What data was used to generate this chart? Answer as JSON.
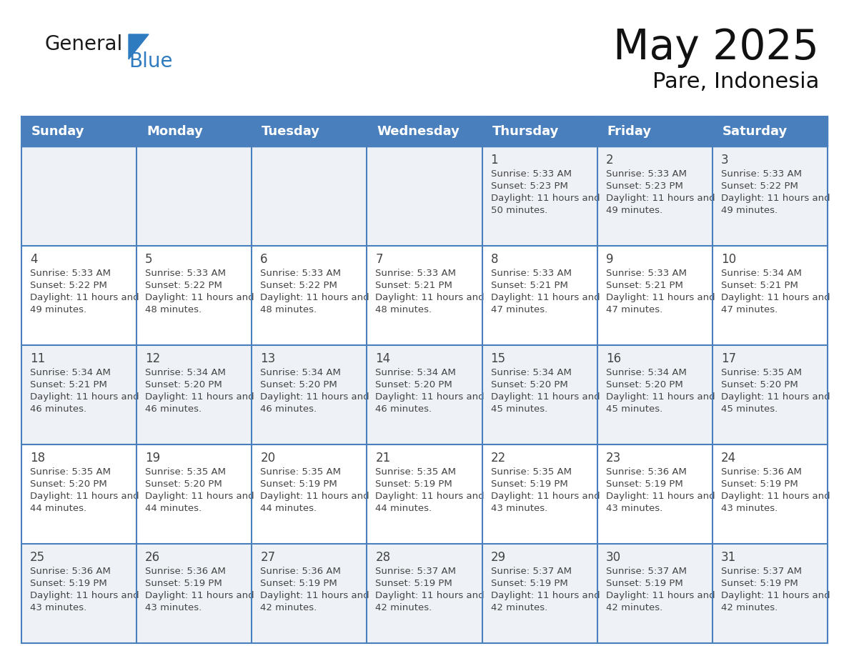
{
  "title": "May 2025",
  "subtitle": "Pare, Indonesia",
  "days_of_week": [
    "Sunday",
    "Monday",
    "Tuesday",
    "Wednesday",
    "Thursday",
    "Friday",
    "Saturday"
  ],
  "header_bg": "#4a7fbd",
  "header_text": "#ffffff",
  "cell_bg_light": "#eef2f7",
  "cell_bg_white": "#ffffff",
  "grid_color": "#4a7fbd",
  "text_color": "#444444",
  "general_text": "#111111",
  "logo_general_color": "#1a1a1a",
  "logo_blue_color": "#2e7bbf",
  "logo_triangle_color": "#2e7bbf",
  "calendar": [
    [
      null,
      null,
      null,
      null,
      {
        "day": 1,
        "sunrise": "5:33 AM",
        "sunset": "5:23 PM",
        "daylight": "11 hours and 50 minutes."
      },
      {
        "day": 2,
        "sunrise": "5:33 AM",
        "sunset": "5:23 PM",
        "daylight": "11 hours and 49 minutes."
      },
      {
        "day": 3,
        "sunrise": "5:33 AM",
        "sunset": "5:22 PM",
        "daylight": "11 hours and 49 minutes."
      }
    ],
    [
      {
        "day": 4,
        "sunrise": "5:33 AM",
        "sunset": "5:22 PM",
        "daylight": "11 hours and 49 minutes."
      },
      {
        "day": 5,
        "sunrise": "5:33 AM",
        "sunset": "5:22 PM",
        "daylight": "11 hours and 48 minutes."
      },
      {
        "day": 6,
        "sunrise": "5:33 AM",
        "sunset": "5:22 PM",
        "daylight": "11 hours and 48 minutes."
      },
      {
        "day": 7,
        "sunrise": "5:33 AM",
        "sunset": "5:21 PM",
        "daylight": "11 hours and 48 minutes."
      },
      {
        "day": 8,
        "sunrise": "5:33 AM",
        "sunset": "5:21 PM",
        "daylight": "11 hours and 47 minutes."
      },
      {
        "day": 9,
        "sunrise": "5:33 AM",
        "sunset": "5:21 PM",
        "daylight": "11 hours and 47 minutes."
      },
      {
        "day": 10,
        "sunrise": "5:34 AM",
        "sunset": "5:21 PM",
        "daylight": "11 hours and 47 minutes."
      }
    ],
    [
      {
        "day": 11,
        "sunrise": "5:34 AM",
        "sunset": "5:21 PM",
        "daylight": "11 hours and 46 minutes."
      },
      {
        "day": 12,
        "sunrise": "5:34 AM",
        "sunset": "5:20 PM",
        "daylight": "11 hours and 46 minutes."
      },
      {
        "day": 13,
        "sunrise": "5:34 AM",
        "sunset": "5:20 PM",
        "daylight": "11 hours and 46 minutes."
      },
      {
        "day": 14,
        "sunrise": "5:34 AM",
        "sunset": "5:20 PM",
        "daylight": "11 hours and 46 minutes."
      },
      {
        "day": 15,
        "sunrise": "5:34 AM",
        "sunset": "5:20 PM",
        "daylight": "11 hours and 45 minutes."
      },
      {
        "day": 16,
        "sunrise": "5:34 AM",
        "sunset": "5:20 PM",
        "daylight": "11 hours and 45 minutes."
      },
      {
        "day": 17,
        "sunrise": "5:35 AM",
        "sunset": "5:20 PM",
        "daylight": "11 hours and 45 minutes."
      }
    ],
    [
      {
        "day": 18,
        "sunrise": "5:35 AM",
        "sunset": "5:20 PM",
        "daylight": "11 hours and 44 minutes."
      },
      {
        "day": 19,
        "sunrise": "5:35 AM",
        "sunset": "5:20 PM",
        "daylight": "11 hours and 44 minutes."
      },
      {
        "day": 20,
        "sunrise": "5:35 AM",
        "sunset": "5:19 PM",
        "daylight": "11 hours and 44 minutes."
      },
      {
        "day": 21,
        "sunrise": "5:35 AM",
        "sunset": "5:19 PM",
        "daylight": "11 hours and 44 minutes."
      },
      {
        "day": 22,
        "sunrise": "5:35 AM",
        "sunset": "5:19 PM",
        "daylight": "11 hours and 43 minutes."
      },
      {
        "day": 23,
        "sunrise": "5:36 AM",
        "sunset": "5:19 PM",
        "daylight": "11 hours and 43 minutes."
      },
      {
        "day": 24,
        "sunrise": "5:36 AM",
        "sunset": "5:19 PM",
        "daylight": "11 hours and 43 minutes."
      }
    ],
    [
      {
        "day": 25,
        "sunrise": "5:36 AM",
        "sunset": "5:19 PM",
        "daylight": "11 hours and 43 minutes."
      },
      {
        "day": 26,
        "sunrise": "5:36 AM",
        "sunset": "5:19 PM",
        "daylight": "11 hours and 43 minutes."
      },
      {
        "day": 27,
        "sunrise": "5:36 AM",
        "sunset": "5:19 PM",
        "daylight": "11 hours and 42 minutes."
      },
      {
        "day": 28,
        "sunrise": "5:37 AM",
        "sunset": "5:19 PM",
        "daylight": "11 hours and 42 minutes."
      },
      {
        "day": 29,
        "sunrise": "5:37 AM",
        "sunset": "5:19 PM",
        "daylight": "11 hours and 42 minutes."
      },
      {
        "day": 30,
        "sunrise": "5:37 AM",
        "sunset": "5:19 PM",
        "daylight": "11 hours and 42 minutes."
      },
      {
        "day": 31,
        "sunrise": "5:37 AM",
        "sunset": "5:19 PM",
        "daylight": "11 hours and 42 minutes."
      }
    ]
  ]
}
